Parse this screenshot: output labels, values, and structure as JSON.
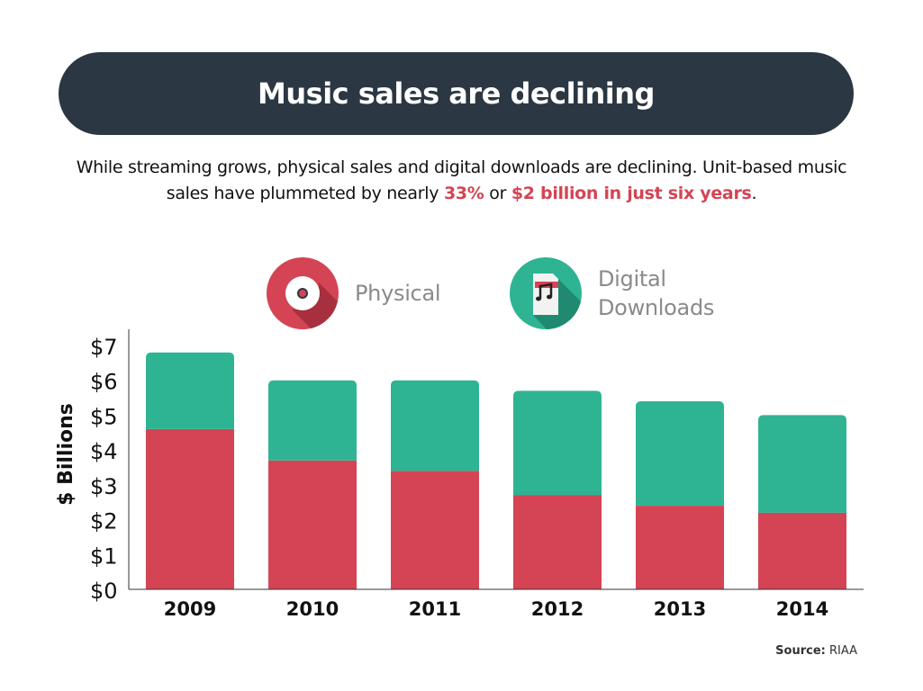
{
  "header": {
    "title": "Music sales are declining"
  },
  "subtitle": {
    "part1": "While streaming grows, physical sales and digital downloads are declining. Unit-based music sales have plummeted by nearly ",
    "highlight1": "33%",
    "part2": " or ",
    "highlight2": "$2 billion in just six years",
    "part3": "."
  },
  "legend": {
    "physical_label": "Physical",
    "digital_label_line1": "Digital",
    "digital_label_line2": "Downloads"
  },
  "source": {
    "label": "Source:",
    "value": "RIAA"
  },
  "colors": {
    "physical": "#d44454",
    "digital": "#2eb493",
    "banner": "#2b3743",
    "highlight": "#d44454"
  },
  "chart_data": {
    "type": "bar",
    "stacked": true,
    "categories": [
      "2009",
      "2010",
      "2011",
      "2012",
      "2013",
      "2014"
    ],
    "series": [
      {
        "name": "Physical",
        "values": [
          4.6,
          3.7,
          3.4,
          2.7,
          2.4,
          2.2
        ]
      },
      {
        "name": "Digital Downloads",
        "values": [
          2.2,
          2.3,
          2.6,
          3.0,
          3.0,
          2.8
        ]
      }
    ],
    "ylabel": "$ Billions",
    "ylim": [
      0,
      7
    ],
    "yticks": [
      "$0",
      "$1",
      "$2",
      "$3",
      "$4",
      "$5",
      "$6",
      "$7"
    ],
    "grid": false
  }
}
